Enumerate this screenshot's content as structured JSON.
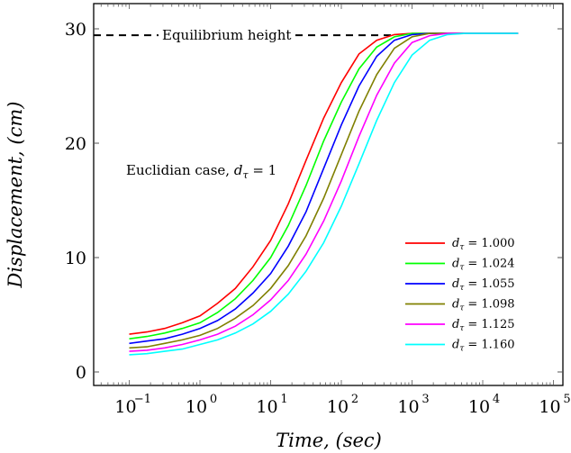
{
  "chart_data": {
    "type": "line",
    "xscale": "log",
    "xlabel": "Time, (sec)",
    "ylabel": "Displacement, (cm)",
    "xlim_log10": [
      -1.5,
      5.3
    ],
    "ylim": [
      -1.2,
      33
    ],
    "xticks_log10": [
      -1,
      0,
      1,
      2,
      3,
      4,
      5
    ],
    "xtick_labels": [
      "10",
      "10",
      "10",
      "10",
      "10",
      "10",
      "10"
    ],
    "xtick_exponents": [
      "−1",
      "0",
      "1",
      "2",
      "3",
      "4",
      "5"
    ],
    "yticks": [
      0,
      10,
      20,
      30
    ],
    "ytick_labels": [
      "0",
      "10",
      "20",
      "30"
    ],
    "grid": false,
    "legend_position": "bottom-right",
    "equilibrium": {
      "value": 29.6,
      "label": "Equilibrium height"
    },
    "annotation": {
      "text": "Euclidian case, ",
      "math": "d",
      "sub": "τ",
      "rest": " = 1"
    },
    "x_log10": [
      -1,
      -0.75,
      -0.5,
      -0.25,
      0,
      0.25,
      0.5,
      0.75,
      1,
      1.25,
      1.5,
      1.75,
      2,
      2.25,
      2.5,
      2.75,
      3,
      3.25,
      3.5,
      3.75,
      4,
      4.25,
      4.5
    ],
    "series": [
      {
        "name": "d_τ = 1.000",
        "label": "= 1.000",
        "color": "#ff0000",
        "values": [
          3.3,
          3.5,
          3.8,
          4.3,
          4.9,
          6.0,
          7.3,
          9.2,
          11.5,
          14.7,
          18.5,
          22.2,
          25.3,
          27.8,
          29.0,
          29.5,
          29.6,
          29.6,
          29.6,
          29.6,
          29.6,
          29.6,
          29.6
        ]
      },
      {
        "name": "d_τ = 1.024",
        "label": "= 1.024",
        "color": "#00ff00",
        "values": [
          2.9,
          3.1,
          3.4,
          3.8,
          4.3,
          5.2,
          6.4,
          8.0,
          10.0,
          12.8,
          16.3,
          20.2,
          23.6,
          26.5,
          28.4,
          29.3,
          29.6,
          29.6,
          29.6,
          29.6,
          29.6,
          29.6,
          29.6
        ]
      },
      {
        "name": "d_τ = 1.055",
        "label": "= 1.055",
        "color": "#0000ff",
        "values": [
          2.5,
          2.7,
          2.9,
          3.3,
          3.8,
          4.5,
          5.5,
          6.9,
          8.6,
          11.0,
          14.0,
          17.8,
          21.6,
          25.0,
          27.6,
          29.0,
          29.5,
          29.6,
          29.6,
          29.6,
          29.6,
          29.6,
          29.6
        ]
      },
      {
        "name": "d_τ = 1.098",
        "label": "= 1.098",
        "color": "#808000",
        "values": [
          2.1,
          2.2,
          2.5,
          2.8,
          3.2,
          3.8,
          4.7,
          5.8,
          7.3,
          9.3,
          11.9,
          15.2,
          19.0,
          22.8,
          26.0,
          28.3,
          29.3,
          29.6,
          29.6,
          29.6,
          29.6,
          29.6,
          29.6
        ]
      },
      {
        "name": "d_τ = 1.125",
        "label": "= 1.125",
        "color": "#ff00ff",
        "values": [
          1.8,
          1.9,
          2.1,
          2.4,
          2.8,
          3.3,
          4.0,
          5.0,
          6.3,
          8.0,
          10.3,
          13.2,
          16.7,
          20.6,
          24.2,
          27.0,
          28.8,
          29.4,
          29.6,
          29.6,
          29.6,
          29.6,
          29.6
        ]
      },
      {
        "name": "d_τ = 1.160",
        "label": "= 1.160",
        "color": "#00ffff",
        "values": [
          1.5,
          1.6,
          1.8,
          2.0,
          2.4,
          2.8,
          3.4,
          4.2,
          5.3,
          6.8,
          8.8,
          11.3,
          14.5,
          18.2,
          22.0,
          25.3,
          27.7,
          29.0,
          29.5,
          29.6,
          29.6,
          29.6,
          29.6
        ]
      }
    ]
  }
}
